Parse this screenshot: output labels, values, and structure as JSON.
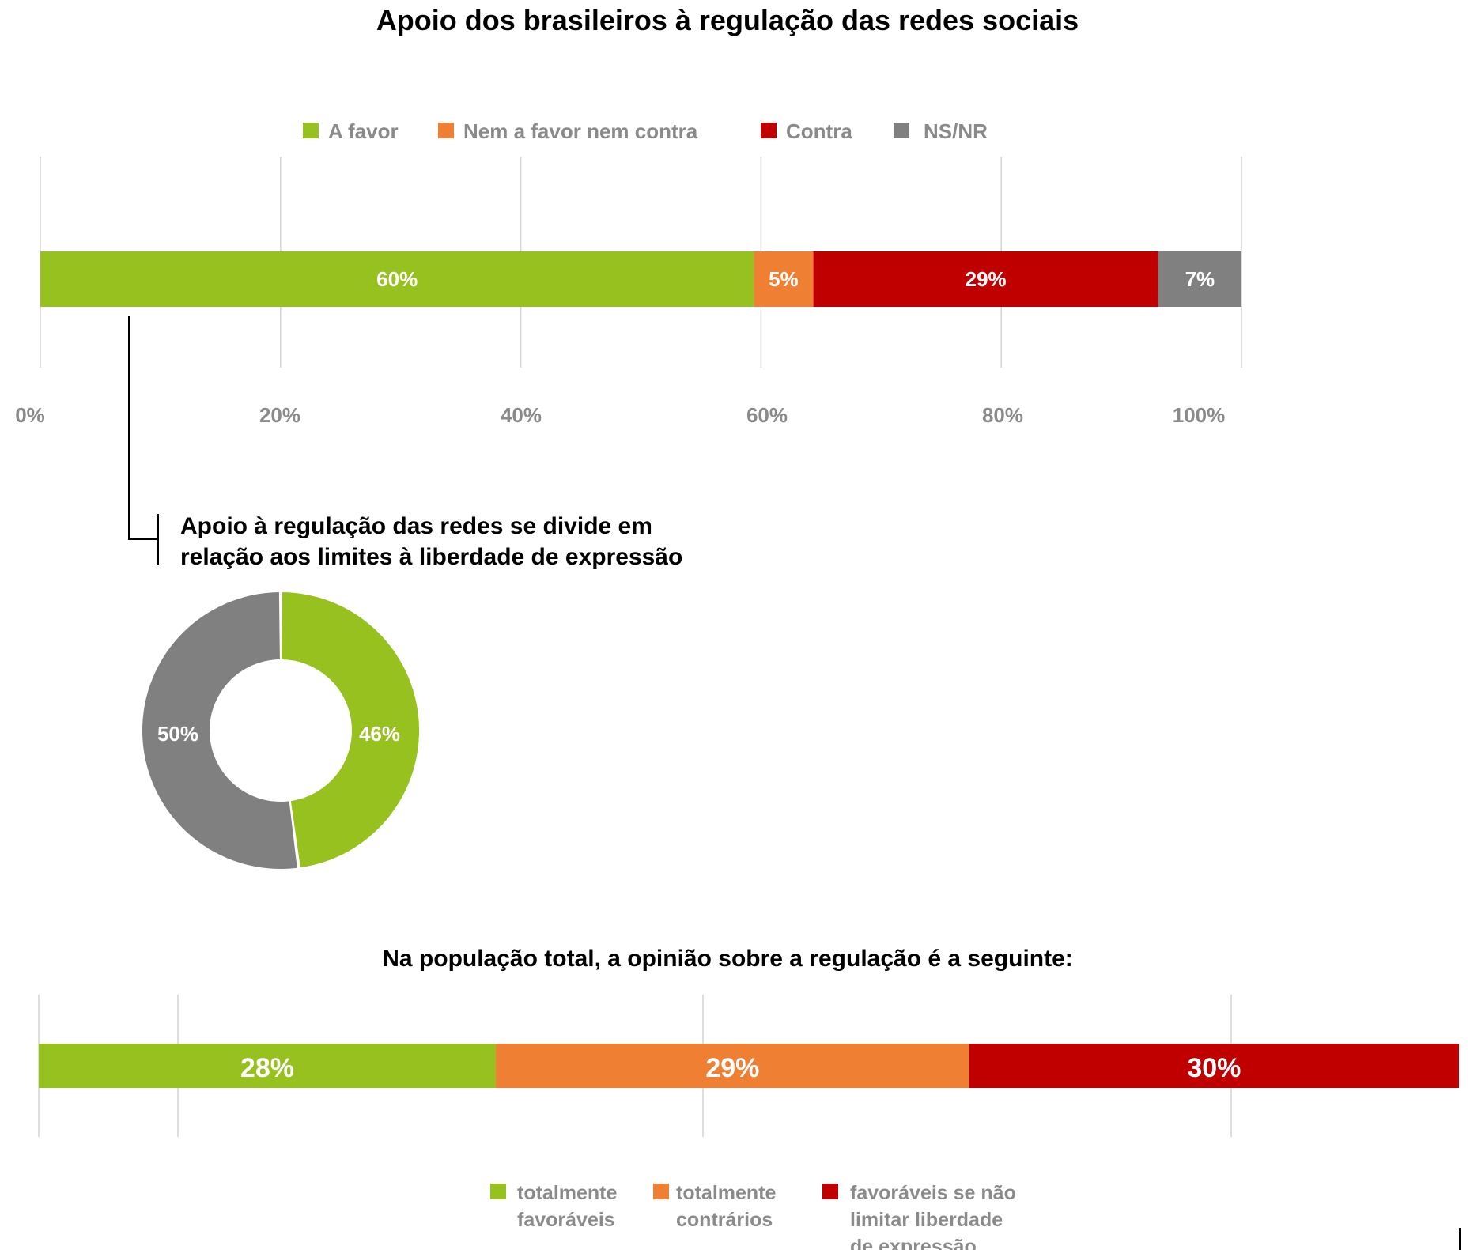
{
  "colors": {
    "green": "#96c11f",
    "orange": "#ee7f33",
    "red": "#c00000",
    "gray": "#808080"
  },
  "chart_data": [
    {
      "type": "bar",
      "orientation": "horizontal-stacked",
      "title": "Apoio dos brasileiros à regulação das redes sociais",
      "legend_position": "top",
      "grid": true,
      "xlim": [
        0,
        100
      ],
      "ticks": [
        "0%",
        "20%",
        "40%",
        "60%",
        "80%",
        "100%"
      ],
      "series": [
        {
          "name": "A favor",
          "value": 60,
          "label": "60%",
          "color": "#96c11f"
        },
        {
          "name": "Nem a favor nem contra",
          "value": 5,
          "label": "5%",
          "color": "#ee7f33"
        },
        {
          "name": "Contra",
          "value": 29,
          "label": "29%",
          "color": "#c00000"
        },
        {
          "name": "NS/NR",
          "value": 7,
          "label": "7%",
          "color": "#808080"
        }
      ]
    },
    {
      "type": "pie",
      "style": "donut",
      "title_lines": [
        "Apoio à regulação das redes se divide em",
        "relação aos limites à liberdade de expressão"
      ],
      "slices": [
        {
          "value": 46,
          "label": "46%",
          "color": "#96c11f"
        },
        {
          "value": 50,
          "label": "50%",
          "color": "#808080"
        }
      ]
    },
    {
      "type": "bar",
      "orientation": "horizontal-stacked",
      "title": "Na população total, a opinião sobre a regulação é a seguinte:",
      "legend_position": "bottom",
      "grid": true,
      "series": [
        {
          "name_lines": [
            "totalmente",
            "favoráveis"
          ],
          "value": 28,
          "label": "28%",
          "color": "#96c11f"
        },
        {
          "name_lines": [
            "totalmente",
            "contrários"
          ],
          "value": 29,
          "label": "29%",
          "color": "#ee7f33"
        },
        {
          "name_lines": [
            "favoráveis se não",
            "limitar liberdade",
            "de expressão"
          ],
          "value": 30,
          "label": "30%",
          "color": "#c00000"
        }
      ]
    }
  ]
}
